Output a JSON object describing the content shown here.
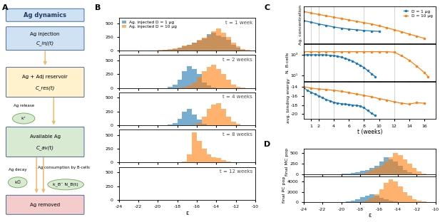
{
  "panel_labels": [
    "A",
    "B",
    "C",
    "D"
  ],
  "diagram": {
    "title": "Ag dynamics",
    "boxes": [
      {
        "label": "Ag injection",
        "quantity": "C_inj(t)"
      },
      {
        "label": "Ag + Adj reservoir",
        "quantity": "C_res(t)"
      },
      {
        "label": "Available Ag",
        "quantity": "C_av(t)"
      },
      {
        "label": "Ag removed"
      }
    ],
    "rates": [
      {
        "label": "Ag release",
        "symbol": "k⁺"
      },
      {
        "label": "Ag decay",
        "symbol": "k∅"
      },
      {
        "label": "Ag consumption by B-cells",
        "symbol": "k_B⁻ N_B(t)"
      }
    ]
  },
  "chart_data": [
    {
      "type": "histogram",
      "annotation": "t = 1 week",
      "legend": "upper left",
      "tick_labels": "y",
      "bins": [
        -21,
        -20.5,
        -20,
        -19.5,
        -19,
        -18.5,
        -18,
        -17.5,
        -17,
        -16.5,
        -16,
        -15.5,
        -15,
        -14.5,
        -14,
        -13.5,
        -13,
        -12.5,
        -12,
        -11.5,
        -11,
        -10.5,
        -10
      ],
      "series": [
        {
          "name": "Ag. injected D = 1 μg",
          "color": "#1f77b4",
          "values": [
            0,
            0,
            5,
            10,
            15,
            30,
            50,
            80,
            100,
            150,
            180,
            220,
            300,
            330,
            280,
            250,
            200,
            100,
            60,
            20,
            5,
            0
          ]
        },
        {
          "name": "Ag. injected D = 10 μg",
          "color": "#ff7f0e",
          "values": [
            5,
            0,
            10,
            20,
            30,
            40,
            60,
            90,
            110,
            150,
            200,
            240,
            280,
            350,
            400,
            330,
            250,
            150,
            80,
            30,
            10,
            0
          ]
        }
      ],
      "xlim": [
        -24,
        -10
      ],
      "xticks": [
        -24,
        -22,
        -20,
        -18,
        -16,
        -14,
        -12,
        -10
      ],
      "ylim": [
        0,
        600
      ],
      "yticks": [
        0,
        250,
        500
      ]
    },
    {
      "type": "histogram",
      "annotation": "t = 2 weeks",
      "tick_labels": "y",
      "bins": [
        -21,
        -20.5,
        -20,
        -19.5,
        -19,
        -18.5,
        -18,
        -17.5,
        -17,
        -16.5,
        -16,
        -15.5,
        -15,
        -14.5,
        -14,
        -13.5,
        -13,
        -12.5,
        -12,
        -11.5,
        -11,
        -10.5,
        -10
      ],
      "series": [
        {
          "color": "#1f77b4",
          "values": [
            0,
            0,
            0,
            0,
            20,
            60,
            150,
            300,
            400,
            350,
            250,
            100,
            40,
            10,
            0,
            0,
            0,
            0,
            0,
            0,
            0,
            0
          ]
        },
        {
          "color": "#ff7f0e",
          "values": [
            0,
            0,
            0,
            0,
            0,
            0,
            5,
            20,
            50,
            100,
            200,
            300,
            380,
            420,
            350,
            250,
            150,
            60,
            20,
            5,
            0,
            0
          ]
        }
      ],
      "xlim": [
        -24,
        -10
      ],
      "xticks": [
        -24,
        -22,
        -20,
        -18,
        -16,
        -14,
        -12,
        -10
      ],
      "ylim": [
        0,
        600
      ],
      "yticks": [
        0,
        250,
        500
      ]
    },
    {
      "type": "histogram",
      "annotation": "t = 4 weeks",
      "tick_labels": "y",
      "bins": [
        -21,
        -20.5,
        -20,
        -19.5,
        -19,
        -18.5,
        -18,
        -17.5,
        -17,
        -16.5,
        -16,
        -15.5,
        -15,
        -14.5,
        -14,
        -13.5,
        -13,
        -12.5,
        -12,
        -11.5,
        -11,
        -10.5,
        -10
      ],
      "series": [
        {
          "color": "#1f77b4",
          "values": [
            0,
            0,
            0,
            0,
            10,
            40,
            120,
            250,
            300,
            200,
            100,
            30,
            5,
            0,
            0,
            0,
            0,
            0,
            0,
            0,
            0,
            0
          ]
        },
        {
          "color": "#ff7f0e",
          "values": [
            0,
            0,
            0,
            0,
            0,
            0,
            0,
            0,
            0,
            10,
            40,
            150,
            300,
            380,
            400,
            300,
            150,
            60,
            20,
            0,
            0,
            0
          ]
        }
      ],
      "xlim": [
        -24,
        -10
      ],
      "xticks": [
        -24,
        -22,
        -20,
        -18,
        -16,
        -14,
        -12,
        -10
      ],
      "ylim": [
        0,
        600
      ],
      "yticks": [
        0,
        250,
        500
      ]
    },
    {
      "type": "histogram",
      "annotation": "t = 8 weeks",
      "tick_labels": "y",
      "bins": [
        -21,
        -20.5,
        -20,
        -19.5,
        -19,
        -18.5,
        -18,
        -17.5,
        -17,
        -16.5,
        -16,
        -15.5,
        -15,
        -14.5,
        -14,
        -13.5,
        -13,
        -12.5,
        -12,
        -11.5,
        -11,
        -10.5,
        -10
      ],
      "series": [
        {
          "color": "#1f77b4",
          "values": [
            0,
            0,
            0,
            0,
            0,
            0,
            0,
            0,
            0,
            0,
            0,
            0,
            0,
            0,
            0,
            0,
            0,
            0,
            0,
            0,
            0,
            0
          ]
        },
        {
          "color": "#ff7f0e",
          "values": [
            0,
            0,
            0,
            0,
            0,
            0,
            0,
            20,
            150,
            550,
            400,
            250,
            150,
            100,
            80,
            50,
            20,
            5,
            0,
            0,
            0,
            0
          ]
        }
      ],
      "xlim": [
        -24,
        -10
      ],
      "xticks": [
        -24,
        -22,
        -20,
        -18,
        -16,
        -14,
        -12,
        -10
      ],
      "ylim": [
        0,
        600
      ],
      "yticks": [
        0,
        250,
        500
      ]
    },
    {
      "type": "histogram",
      "annotation": "t = 12 weeks",
      "x_label": "ε",
      "bins": [
        -21,
        -20.5,
        -20,
        -19.5,
        -19,
        -18.5,
        -18,
        -17.5,
        -17,
        -16.5,
        -16,
        -15.5,
        -15,
        -14.5,
        -14,
        -13.5,
        -13,
        -12.5,
        -12,
        -11.5,
        -11,
        -10.5,
        -10
      ],
      "series": [
        {
          "color": "#1f77b4",
          "values": [
            0,
            0,
            0,
            0,
            0,
            0,
            0,
            0,
            0,
            0,
            0,
            0,
            0,
            0,
            0,
            0,
            0,
            0,
            0,
            0,
            0,
            0
          ]
        },
        {
          "color": "#ff7f0e",
          "values": [
            0,
            0,
            0,
            0,
            0,
            0,
            0,
            0,
            0,
            0,
            0,
            0,
            0,
            0,
            0,
            0,
            0,
            0,
            0,
            0,
            0,
            0
          ]
        }
      ],
      "xlim": [
        -24,
        -10
      ],
      "xticks": [
        -24,
        -22,
        -20,
        -18,
        -16,
        -14,
        -12,
        -10
      ],
      "ylim": [
        0,
        600
      ],
      "yticks": [
        0,
        250,
        500
      ]
    },
    {
      "type": "line",
      "y_label": "Ag. concentration",
      "log": "y",
      "tick_labels": false,
      "legend": "upper right",
      "marked_times": [
        1,
        2,
        4,
        8,
        12
      ],
      "series": [
        {
          "name": "D = 1 μg",
          "color": "#1f77b4",
          "marker": "o",
          "x": [
            0,
            1,
            2,
            3,
            4,
            5,
            6,
            7,
            8,
            9,
            10
          ],
          "values": [
            30,
            20,
            13,
            9,
            6,
            4.5,
            3.5,
            3,
            2.5,
            2.2,
            2
          ]
        },
        {
          "name": "D = 10 μg",
          "color": "#ff7f0e",
          "marker": "o",
          "x": [
            0,
            1,
            2,
            3,
            4,
            5,
            6,
            7,
            8,
            9,
            10,
            11,
            12,
            13,
            14,
            15,
            16
          ],
          "values": [
            300,
            200,
            140,
            100,
            70,
            50,
            35,
            25,
            18,
            13,
            8,
            5,
            3,
            1.8,
            1,
            0.6,
            0.35
          ]
        }
      ],
      "xlim": [
        0,
        17.5
      ],
      "xticks": [
        1,
        2,
        4,
        6,
        8,
        10,
        12,
        14,
        16
      ],
      "ylim": [
        0.1,
        1000
      ],
      "yticks": []
    },
    {
      "type": "line",
      "y_label": "N. B-cells",
      "log": "y",
      "tick_labels": "y",
      "marked_times": [
        1,
        2,
        4,
        8,
        12
      ],
      "series": [
        {
          "color": "#1f77b4",
          "marker": "o",
          "x": [
            0,
            0.5,
            1,
            1.5,
            2,
            2.5,
            3,
            3.5,
            4,
            4.5,
            5,
            5.5,
            6,
            6.5,
            7,
            7.5,
            8,
            8.5,
            9,
            9.5
          ],
          "values": [
            1000,
            1000,
            1000,
            1000,
            1000,
            1000,
            950,
            900,
            850,
            700,
            600,
            450,
            350,
            250,
            150,
            100,
            60,
            30,
            15,
            8
          ]
        },
        {
          "color": "#ff7f0e",
          "marker": "o",
          "x": [
            0,
            1,
            2,
            3,
            4,
            5,
            6,
            7,
            8,
            9,
            10,
            11,
            12,
            13,
            14,
            15,
            16,
            16.5
          ],
          "values": [
            2000,
            2000,
            2000,
            2000,
            2000,
            2000,
            2000,
            2000,
            2000,
            2000,
            2000,
            2000,
            1800,
            800,
            300,
            80,
            20,
            8
          ]
        }
      ],
      "xlim": [
        0,
        17.5
      ],
      "xticks": [
        1,
        2,
        4,
        6,
        8,
        10,
        12,
        14,
        16
      ],
      "ylim": [
        3,
        10000
      ],
      "yticks": [
        {
          "value": 10,
          "label": "10¹"
        },
        {
          "value": 1000,
          "label": "10³"
        }
      ]
    },
    {
      "type": "line",
      "y_label": "avg. binding energy",
      "x_label": "t (weeks)",
      "marked_times": [
        1,
        2,
        4,
        8,
        12
      ],
      "series": [
        {
          "color": "#1f77b4",
          "marker": "o",
          "x": [
            0,
            0.5,
            1,
            1.5,
            2,
            2.5,
            3,
            3.5,
            4,
            4.5,
            5,
            5.5,
            6,
            6.5,
            7,
            7.5,
            8,
            8.5,
            9,
            9.5
          ],
          "values": [
            -14.2,
            -14.8,
            -15.2,
            -15.6,
            -16,
            -16.4,
            -16.8,
            -17.1,
            -17.4,
            -17.6,
            -17.7,
            -17.8,
            -17.9,
            -18,
            -18.1,
            -18.2,
            -18.6,
            -19.2,
            -19.8,
            -20.3
          ]
        },
        {
          "color": "#ff7f0e",
          "marker": "o",
          "x": [
            0,
            1,
            2,
            3,
            4,
            5,
            6,
            7,
            8,
            9,
            10,
            11,
            12,
            13,
            14,
            15,
            16
          ],
          "values": [
            -14,
            -14.3,
            -14.5,
            -14.6,
            -14.8,
            -15,
            -15.3,
            -15.6,
            -15.9,
            -16.2,
            -16.6,
            -16.9,
            -17.3,
            -17.6,
            -17.8,
            -17.5,
            -17.6
          ]
        }
      ],
      "xlim": [
        0,
        17.5
      ],
      "xticks": [
        1,
        2,
        4,
        6,
        8,
        10,
        12,
        14,
        16
      ],
      "ylim": [
        -21,
        -13
      ],
      "yticks": [
        -20,
        -18,
        -16,
        -14
      ]
    },
    {
      "type": "histogram",
      "y_label": "final MC pop",
      "tick_labels": "y",
      "bins": [
        -21,
        -20.5,
        -20,
        -19.5,
        -19,
        -18.5,
        -18,
        -17.5,
        -17,
        -16.5,
        -16,
        -15.5,
        -15,
        -14.5,
        -14,
        -13.5,
        -13,
        -12.5,
        -12,
        -11.5,
        -11,
        -10.5,
        -10
      ],
      "series": [
        {
          "color": "#1f77b4",
          "values": [
            0,
            5,
            10,
            20,
            30,
            50,
            80,
            100,
            150,
            200,
            300,
            400,
            350,
            300,
            200,
            100,
            50,
            20,
            5,
            0,
            0,
            0
          ]
        },
        {
          "color": "#ff7f0e",
          "values": [
            0,
            0,
            0,
            0,
            0,
            5,
            20,
            50,
            100,
            150,
            200,
            300,
            400,
            500,
            450,
            350,
            250,
            150,
            60,
            20,
            5,
            0
          ]
        }
      ],
      "xlim": [
        -24,
        -10
      ],
      "xticks": [
        -24,
        -22,
        -20,
        -18,
        -16,
        -14,
        -12,
        -10
      ],
      "ylim": [
        0,
        600
      ],
      "yticks": [
        0,
        250,
        500
      ]
    },
    {
      "type": "histogram",
      "y_label": "final PC pop",
      "x_label": "ε",
      "bins": [
        -21,
        -20.5,
        -20,
        -19.5,
        -19,
        -18.5,
        -18,
        -17.5,
        -17,
        -16.5,
        -16,
        -15.5,
        -15,
        -14.5,
        -14,
        -13.5,
        -13,
        -12.5,
        -12,
        -11.5,
        -11,
        -10.5,
        -10
      ],
      "series": [
        {
          "color": "#1f77b4",
          "values": [
            0,
            0,
            50,
            150,
            300,
            500,
            900,
            1300,
            1500,
            1200,
            800,
            500,
            200,
            80,
            20,
            0,
            0,
            0,
            0,
            0,
            0,
            0
          ]
        },
        {
          "color": "#ff7f0e",
          "values": [
            0,
            0,
            0,
            0,
            0,
            20,
            100,
            300,
            800,
            1500,
            2500,
            3800,
            4500,
            4000,
            3000,
            2000,
            1200,
            500,
            200,
            60,
            10,
            0
          ]
        }
      ],
      "xlim": [
        -24,
        -10
      ],
      "xticks": [
        -24,
        -22,
        -20,
        -18,
        -16,
        -14,
        -12,
        -10
      ],
      "ylim": [
        0,
        5000
      ],
      "yticks": [
        0,
        2000,
        4000
      ]
    }
  ]
}
